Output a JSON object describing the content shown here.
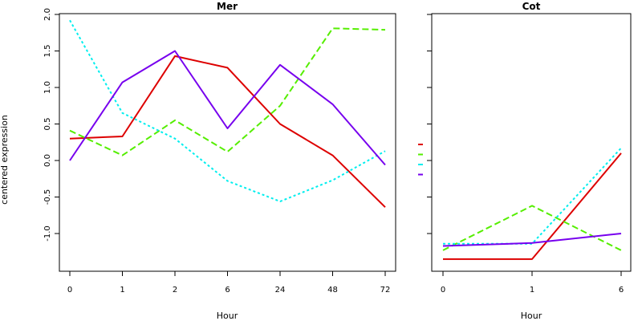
{
  "chart_data": [
    {
      "type": "line",
      "title": "Mer",
      "xlabel": "Hour",
      "ylabel": "centered expression",
      "categories": [
        "0",
        "1",
        "2",
        "6",
        "24",
        "48",
        "72"
      ],
      "yticks": [
        "-1.0",
        "-0.5",
        "0.0",
        "0.5",
        "1.0",
        "1.5",
        "2.0"
      ],
      "ylim": [
        -1.5,
        2.0
      ],
      "series": [
        {
          "color": "#dd0000",
          "dash": "solid",
          "values": [
            0.3,
            0.33,
            1.43,
            1.27,
            0.5,
            0.07,
            -0.64
          ]
        },
        {
          "color": "#55ee00",
          "dash": "dashed",
          "values": [
            0.41,
            0.07,
            0.55,
            0.12,
            0.75,
            1.81,
            1.79
          ]
        },
        {
          "color": "#00eeee",
          "dash": "dotted",
          "values": [
            1.92,
            0.65,
            0.3,
            -0.28,
            -0.56,
            -0.27,
            0.13
          ]
        },
        {
          "color": "#7700ee",
          "dash": "solid",
          "values": [
            0.0,
            1.07,
            1.5,
            0.44,
            1.31,
            0.77,
            -0.06
          ]
        }
      ]
    },
    {
      "type": "line",
      "title": "Cot",
      "xlabel": "Hour",
      "ylabel": "",
      "categories": [
        "0",
        "1",
        "6"
      ],
      "ylim": [
        -1.5,
        2.0
      ],
      "series": [
        {
          "color": "#dd0000",
          "dash": "solid",
          "values": [
            -1.35,
            -1.35,
            0.1
          ]
        },
        {
          "color": "#55ee00",
          "dash": "dashed",
          "values": [
            -1.23,
            -0.62,
            -1.23
          ]
        },
        {
          "color": "#00eeee",
          "dash": "dotted",
          "values": [
            -1.14,
            -1.14,
            0.17
          ]
        },
        {
          "color": "#7700ee",
          "dash": "solid",
          "values": [
            -1.17,
            -1.13,
            -1.0
          ]
        }
      ]
    }
  ]
}
